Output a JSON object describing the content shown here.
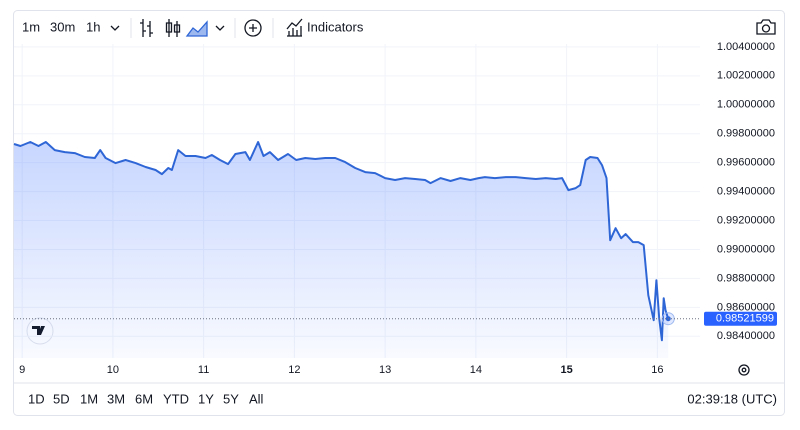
{
  "toolbar": {
    "intervals": [
      "1m",
      "30m",
      "1h"
    ],
    "indicators": "Indicators"
  },
  "chart_data": {
    "type": "area",
    "x": [
      8.91,
      8.98,
      9.09,
      9.18,
      9.26,
      9.36,
      9.47,
      9.58,
      9.69,
      9.8,
      9.86,
      9.92,
      10.03,
      10.14,
      10.25,
      10.36,
      10.47,
      10.54,
      10.61,
      10.65,
      10.72,
      10.8,
      10.91,
      11.02,
      11.09,
      11.18,
      11.27,
      11.35,
      11.46,
      11.51,
      11.6,
      11.66,
      11.73,
      11.82,
      11.93,
      12.02,
      12.12,
      12.23,
      12.34,
      12.45,
      12.56,
      12.67,
      12.78,
      12.89,
      13.0,
      13.11,
      13.22,
      13.33,
      13.44,
      13.5,
      13.61,
      13.72,
      13.83,
      13.94,
      14.03,
      14.1,
      14.21,
      14.33,
      14.44,
      14.55,
      14.66,
      14.77,
      14.88,
      14.95,
      15.02,
      15.1,
      15.15,
      15.21,
      15.26,
      15.34,
      15.39,
      15.44,
      15.48,
      15.54,
      15.6,
      15.65,
      15.73,
      15.79,
      15.85,
      15.9,
      15.96,
      15.99,
      16.02,
      16.05,
      16.07,
      16.09,
      16.12
    ],
    "values": [
      0.99729,
      0.99715,
      0.99743,
      0.99715,
      0.99743,
      0.99687,
      0.99673,
      0.99666,
      0.99639,
      0.99632,
      0.99687,
      0.99632,
      0.99597,
      0.99618,
      0.99597,
      0.9957,
      0.99549,
      0.99521,
      0.99563,
      0.99549,
      0.99687,
      0.99646,
      0.99646,
      0.99632,
      0.99653,
      0.99618,
      0.9959,
      0.9966,
      0.99673,
      0.99618,
      0.99743,
      0.99646,
      0.99673,
      0.99618,
      0.9966,
      0.99618,
      0.99632,
      0.99625,
      0.99632,
      0.99632,
      0.99604,
      0.99563,
      0.99535,
      0.99528,
      0.99493,
      0.9948,
      0.99493,
      0.99487,
      0.9948,
      0.99459,
      0.99493,
      0.99473,
      0.99493,
      0.9948,
      0.99493,
      0.995,
      0.99493,
      0.995,
      0.995,
      0.99493,
      0.99487,
      0.99493,
      0.99487,
      0.99493,
      0.9941,
      0.99424,
      0.99445,
      0.99618,
      0.99639,
      0.99632,
      0.99583,
      0.99493,
      0.99064,
      0.99147,
      0.99078,
      0.99106,
      0.99051,
      0.99051,
      0.9903,
      0.98684,
      0.98511,
      0.98788,
      0.98525,
      0.98372,
      0.98663,
      0.9858,
      0.98521599
    ],
    "color": "#2f66d6",
    "last_price": 0.98521599,
    "xlim": [
      8.91,
      16.47
    ],
    "xticks": [
      9,
      10,
      11,
      12,
      13,
      14,
      15,
      16
    ],
    "ylim": [
      0.9825,
      1.0042
    ],
    "yticks": [
      {
        "value": 0.984,
        "label": "0.98400000"
      },
      {
        "value": 0.986,
        "label": "0.98600000"
      },
      {
        "value": 0.988,
        "label": "0.98800000"
      },
      {
        "value": 0.99,
        "label": "0.99000000"
      },
      {
        "value": 0.992,
        "label": "0.99200000"
      },
      {
        "value": 0.994,
        "label": "0.99400000"
      },
      {
        "value": 0.996,
        "label": "0.99600000"
      },
      {
        "value": 0.998,
        "label": "0.99800000"
      },
      {
        "value": 1.0,
        "label": "1.00000000"
      },
      {
        "value": 1.002,
        "label": "1.00200000"
      },
      {
        "value": 1.004,
        "label": "1.00400000"
      }
    ],
    "grid": true
  },
  "footer": {
    "ranges": [
      "1D",
      "5D",
      "1M",
      "3M",
      "6M",
      "YTD",
      "1Y",
      "5Y",
      "All"
    ],
    "time": "02:39:18 (UTC)"
  }
}
